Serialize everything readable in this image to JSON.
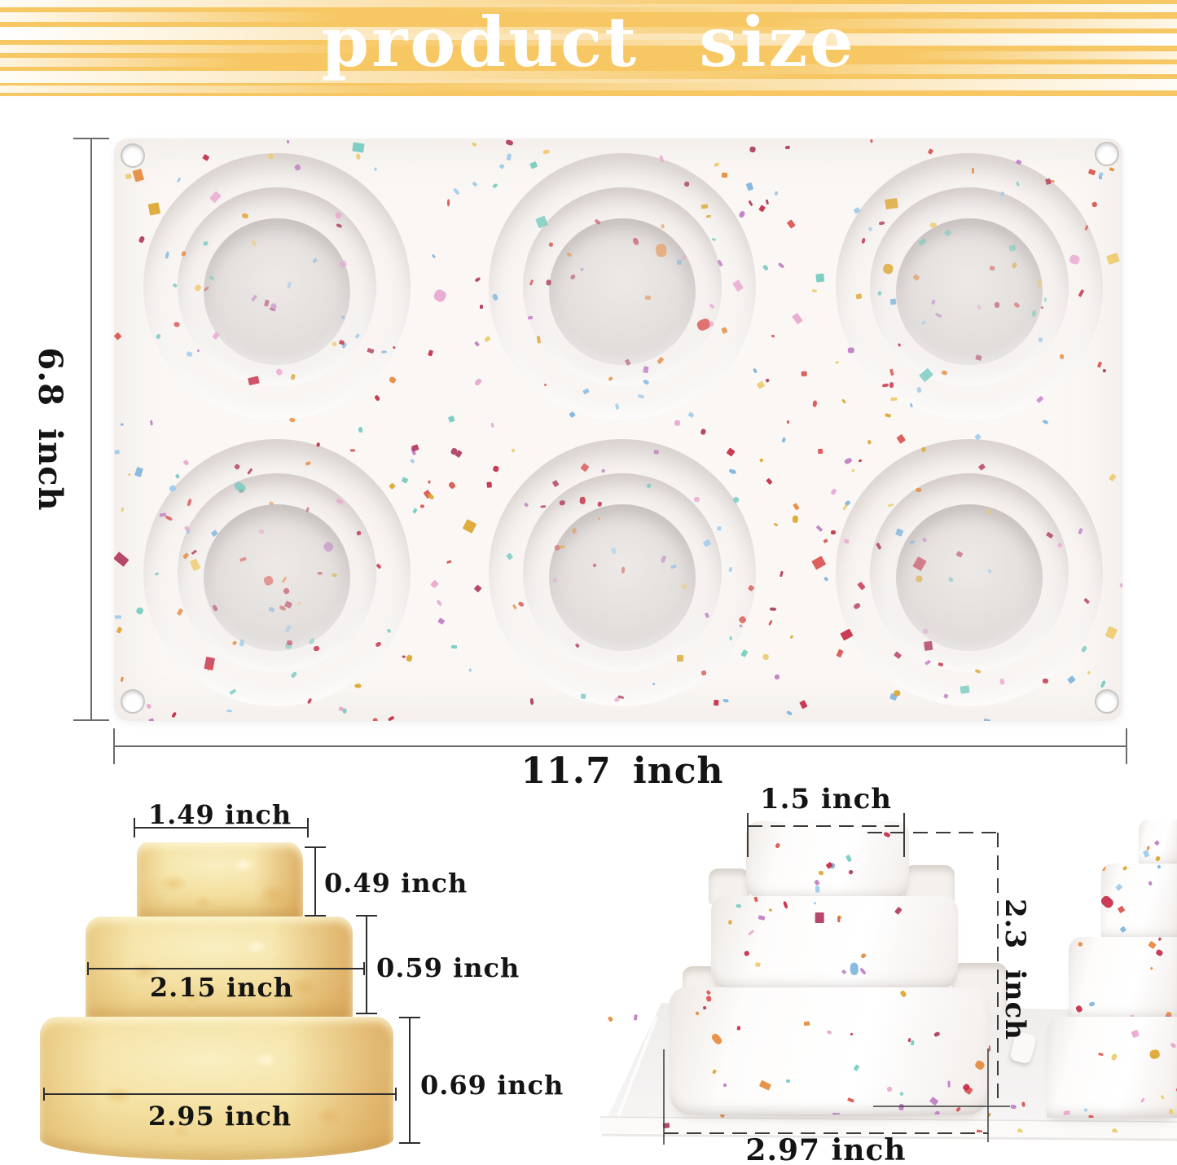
{
  "banner": {
    "title": "product size",
    "background": "#F7C763",
    "text_color": "#FFFFFF"
  },
  "top_view": {
    "height_label": "6.8 inch",
    "width_label": "11.7 inch",
    "cavity_rows": 2,
    "cavity_columns": 3,
    "cavity_count": 6
  },
  "cake_sample": {
    "tiers": [
      {
        "name": "top",
        "diameter_label": "1.49 inch",
        "height_label": "0.49 inch"
      },
      {
        "name": "middle",
        "diameter_label": "2.15 inch",
        "height_label": "0.59 inch"
      },
      {
        "name": "bottom",
        "diameter_label": "2.95 inch",
        "height_label": "0.69 inch"
      }
    ]
  },
  "demolded_view": {
    "top_width_label": "1.5 inch",
    "height_label": "2.3 inch",
    "base_width_label": "2.97 inch"
  },
  "colors": {
    "banner_yellow": "#F7C763",
    "mold_white": "#FAF7F4",
    "cavity_floor": "#E2DEDC",
    "cake_yellow": "#EFD78F",
    "tray_gray": "#F1EFEE",
    "dimension_line": "#4A4A4A",
    "confetti": [
      "#C42B45",
      "#D9544F",
      "#E58A3C",
      "#DCA52E",
      "#EDCB6C",
      "#7FB5DE",
      "#9CCBEC",
      "#74CBC0",
      "#E8A6CF",
      "#BF7CC4",
      "#B03A5E"
    ]
  }
}
